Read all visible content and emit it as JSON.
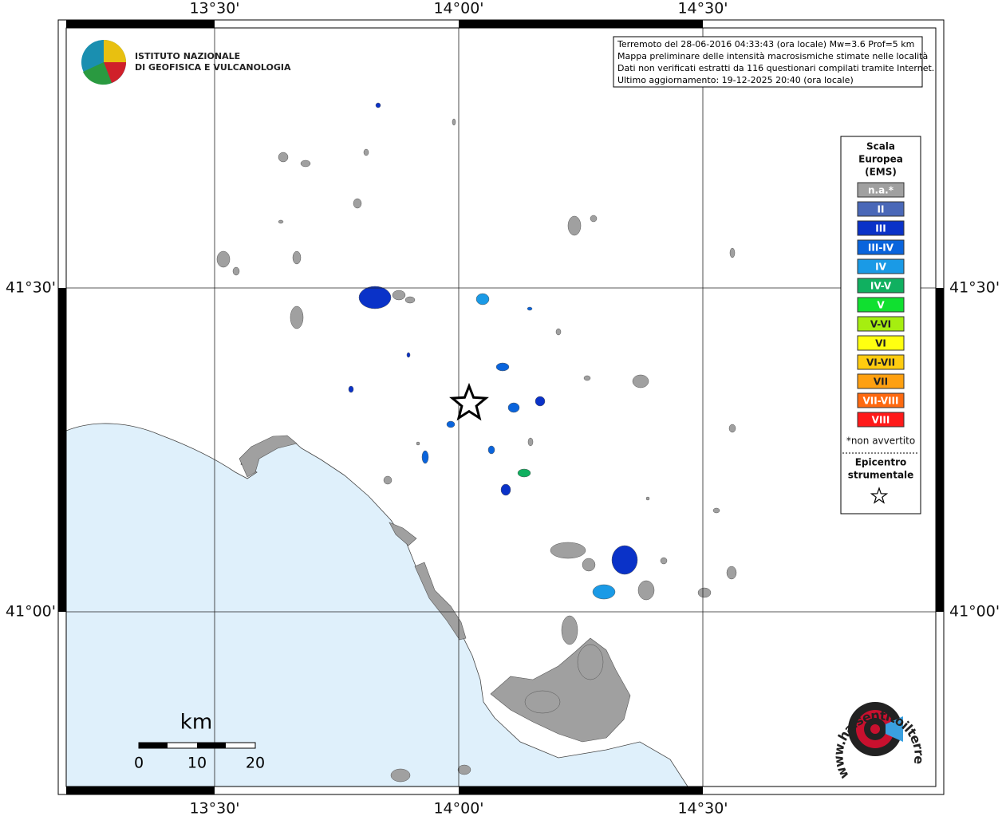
{
  "header": {
    "logo_line1": "ISTITUTO NAZIONALE",
    "logo_line2": "DI GEOFISICA E VULCANOLOGIA"
  },
  "info_box": [
    "Terremoto del 28-06-2016 04:33:43 (ora locale) Mw=3.6 Prof=5 km",
    "Mappa preliminare delle intensità macrosismiche stimate nelle località",
    "Dati non verificati estratti da 116 questionari compilati tramite Internet.",
    "Ultimo aggiornamento: 19-12-2025 20:40 (ora locale)"
  ],
  "axes": {
    "top": [
      "13°30'",
      "14°00'",
      "14°30'"
    ],
    "bottom": [
      "13°30'",
      "14°00'",
      "14°30'"
    ],
    "left": [
      "41°30'",
      "41°00'"
    ],
    "right": [
      "41°30'",
      "41°00'"
    ]
  },
  "legend": {
    "title": [
      "Scala",
      "Europea",
      "(EMS)"
    ],
    "items": [
      {
        "label": "n.a.*",
        "color": "#a0a0a0"
      },
      {
        "label": "II",
        "color": "#4a68b8"
      },
      {
        "label": "III",
        "color": "#0a32c8"
      },
      {
        "label": "III-IV",
        "color": "#0a64dc"
      },
      {
        "label": "IV",
        "color": "#1a9ae6"
      },
      {
        "label": "IV-V",
        "color": "#10b060"
      },
      {
        "label": "V",
        "color": "#10e030"
      },
      {
        "label": "V-VI",
        "color": "#a6ee10"
      },
      {
        "label": "VI",
        "color": "#ffff10"
      },
      {
        "label": "VI-VII",
        "color": "#ffcc10"
      },
      {
        "label": "VII",
        "color": "#ffa010"
      },
      {
        "label": "VII-VIII",
        "color": "#ff6a10"
      },
      {
        "label": "VIII",
        "color": "#ff1a1a"
      }
    ],
    "note": "*non avvertito",
    "epicentre": [
      "Epicentro",
      "strumentale"
    ]
  },
  "scale_bar": {
    "unit": "km",
    "ticks": [
      0,
      10,
      20
    ]
  },
  "footer_logo": "www.haisentitoilterremoto.it"
}
